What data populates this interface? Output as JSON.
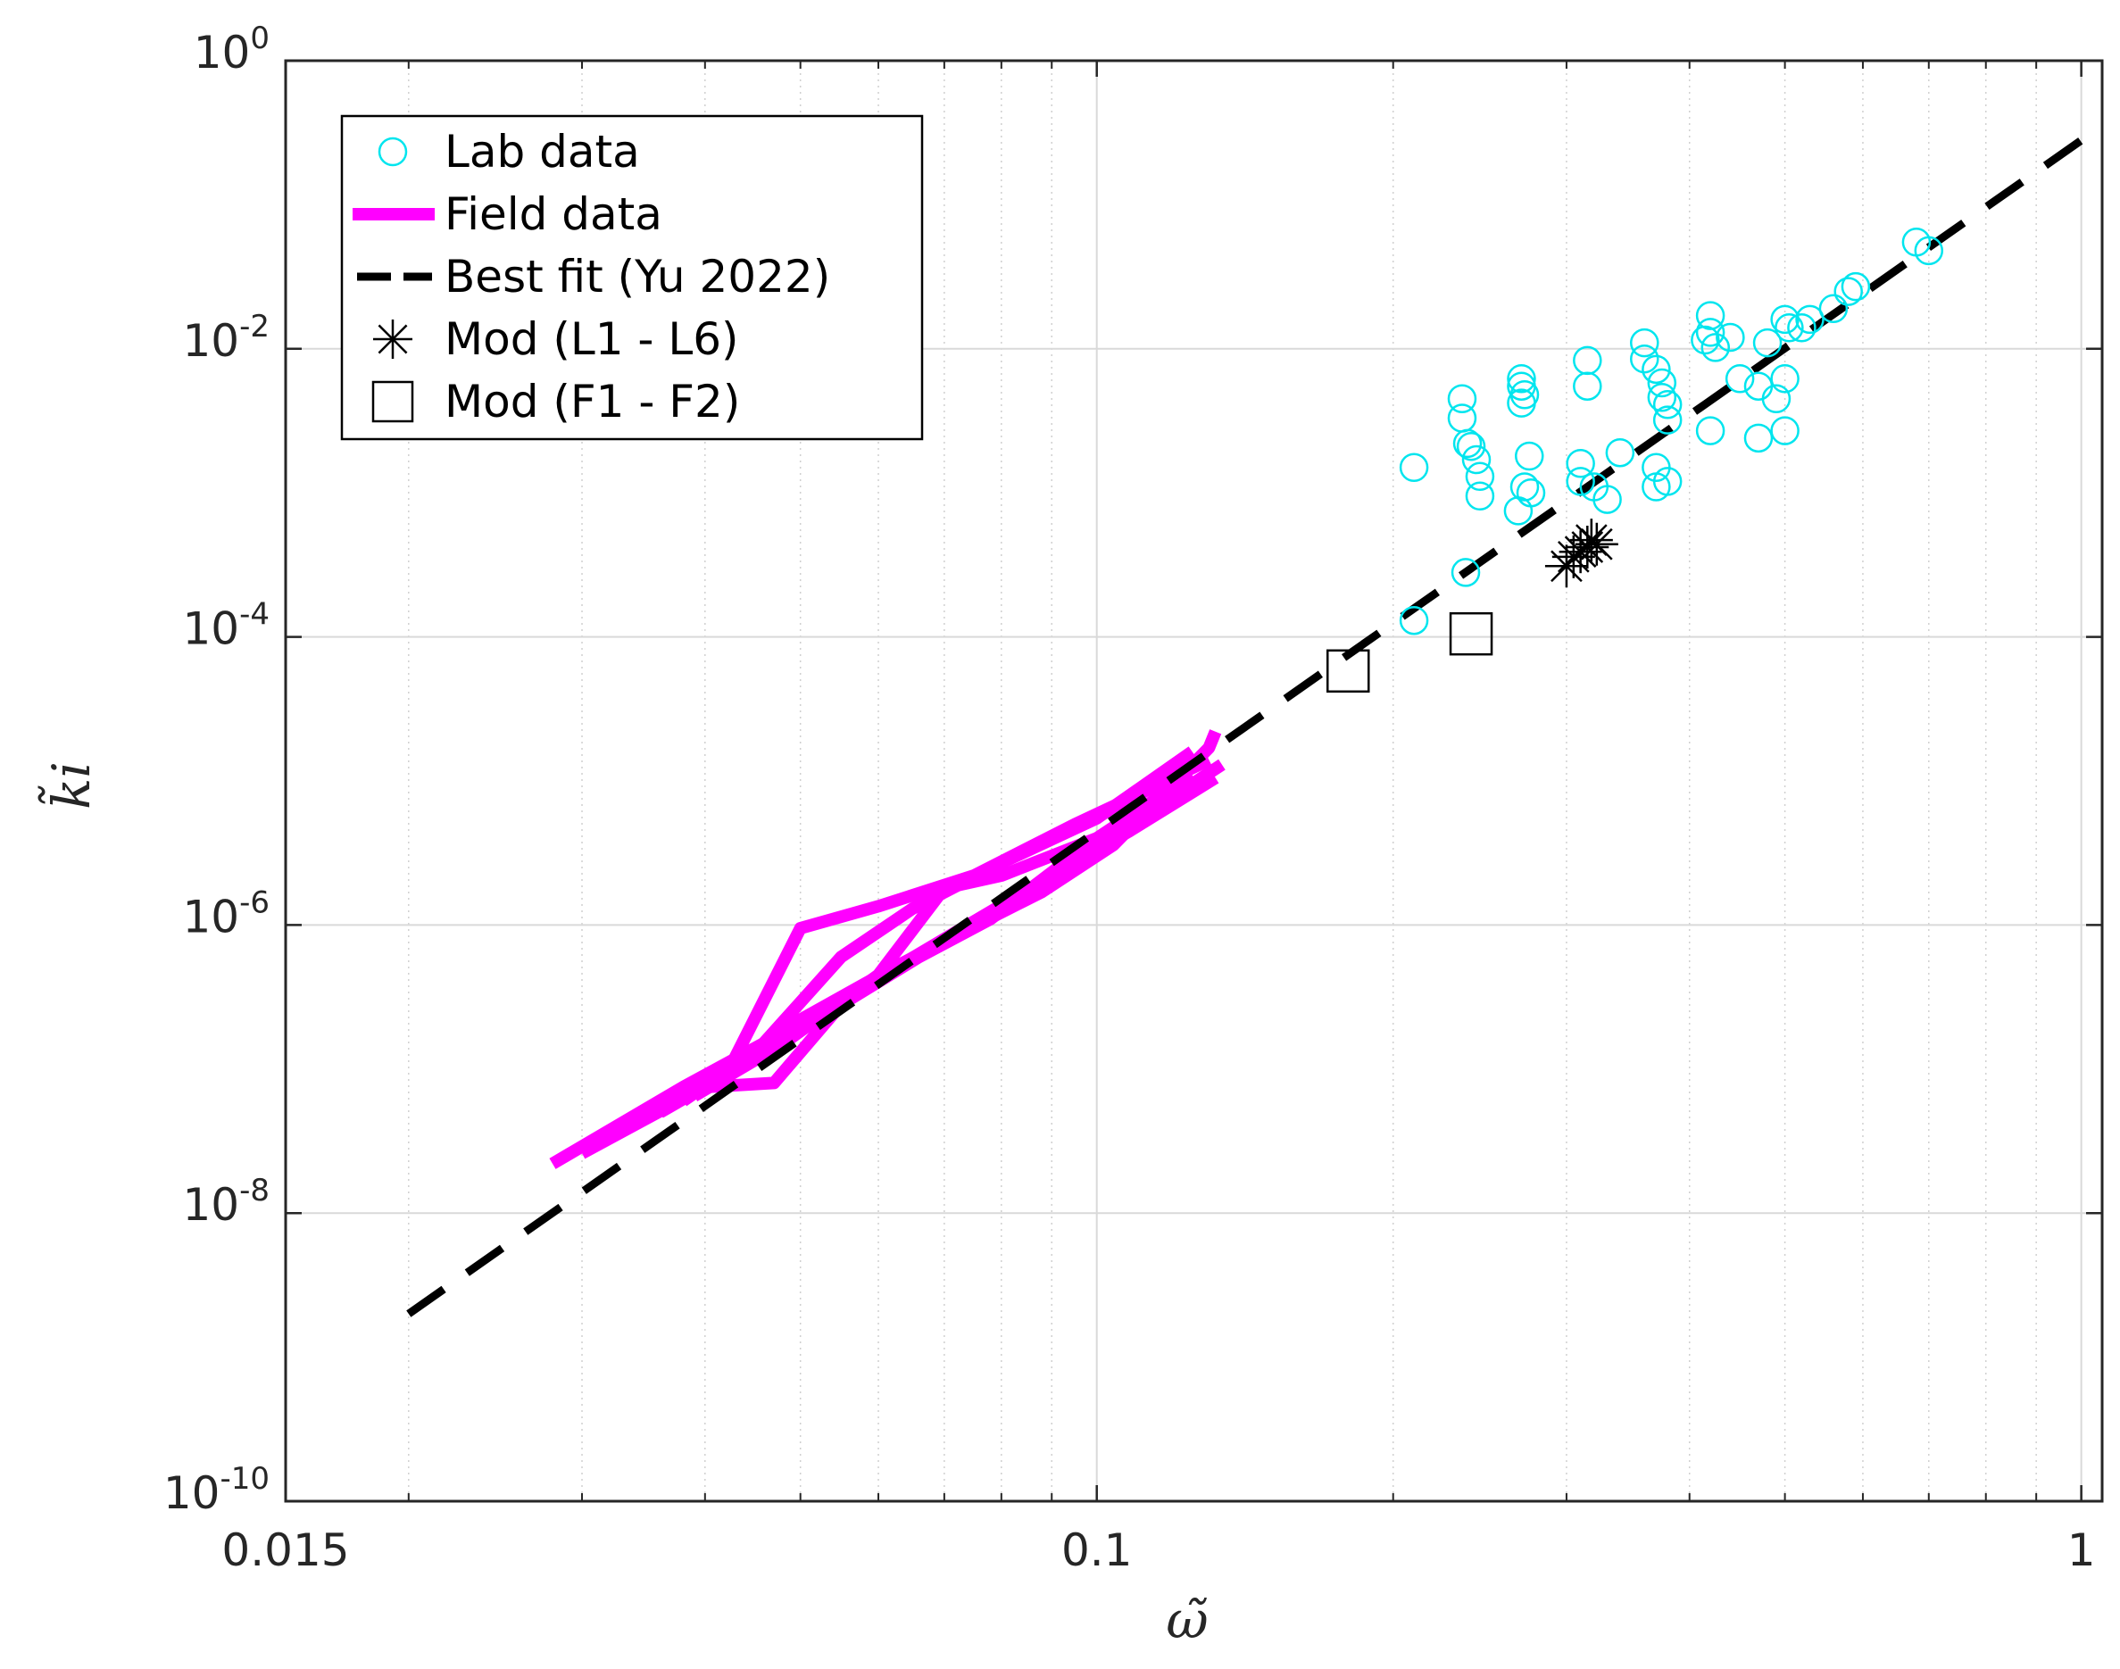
{
  "chart_data": {
    "type": "scatter",
    "xlabel": "ω̃",
    "ylabel": "k̃i",
    "xscale": "log",
    "yscale": "log",
    "xlim": [
      0.015,
      1.05
    ],
    "ylim": [
      1e-10,
      1
    ],
    "grid": true,
    "legend_position": "top-left",
    "x_ticks": [
      {
        "value": 0.015,
        "label": "0.015"
      },
      {
        "value": 0.1,
        "label": "0.1"
      },
      {
        "value": 1,
        "label": "1"
      }
    ],
    "y_ticks": [
      {
        "value": 1,
        "base": "10",
        "exp": "0"
      },
      {
        "value": 0.01,
        "base": "10",
        "exp": "-2"
      },
      {
        "value": 0.0001,
        "base": "10",
        "exp": "-4"
      },
      {
        "value": 1e-06,
        "base": "10",
        "exp": "-6"
      },
      {
        "value": 1e-08,
        "base": "10",
        "exp": "-8"
      },
      {
        "value": 1e-10,
        "base": "10",
        "exp": "-10"
      }
    ],
    "series": [
      {
        "name": "Lab data",
        "marker": "circle",
        "color": "#00e5ee",
        "points": [
          [
            0.21,
            0.0015
          ],
          [
            0.21,
            0.00013
          ],
          [
            0.235,
            0.0045
          ],
          [
            0.235,
            0.0033
          ],
          [
            0.238,
            0.0022
          ],
          [
            0.24,
            0.0021
          ],
          [
            0.243,
            0.0017
          ],
          [
            0.245,
            0.0013
          ],
          [
            0.245,
            0.00095
          ],
          [
            0.237,
            0.00028
          ],
          [
            0.27,
            0.0062
          ],
          [
            0.27,
            0.0055
          ],
          [
            0.272,
            0.0048
          ],
          [
            0.27,
            0.0042
          ],
          [
            0.275,
            0.0018
          ],
          [
            0.272,
            0.0011
          ],
          [
            0.276,
            0.001
          ],
          [
            0.268,
            0.00075
          ],
          [
            0.315,
            0.0083
          ],
          [
            0.315,
            0.0055
          ],
          [
            0.31,
            0.0016
          ],
          [
            0.31,
            0.0012
          ],
          [
            0.33,
            0.0009
          ],
          [
            0.32,
            0.0011
          ],
          [
            0.34,
            0.0019
          ],
          [
            0.36,
            0.011
          ],
          [
            0.36,
            0.0085
          ],
          [
            0.37,
            0.0072
          ],
          [
            0.375,
            0.0058
          ],
          [
            0.375,
            0.0046
          ],
          [
            0.38,
            0.0041
          ],
          [
            0.38,
            0.0032
          ],
          [
            0.37,
            0.0015
          ],
          [
            0.37,
            0.0011
          ],
          [
            0.38,
            0.0012
          ],
          [
            0.42,
            0.017
          ],
          [
            0.42,
            0.013
          ],
          [
            0.415,
            0.0115
          ],
          [
            0.425,
            0.0102
          ],
          [
            0.44,
            0.012
          ],
          [
            0.45,
            0.0062
          ],
          [
            0.42,
            0.0027
          ],
          [
            0.47,
            0.0055
          ],
          [
            0.48,
            0.011
          ],
          [
            0.49,
            0.0045
          ],
          [
            0.47,
            0.0024
          ],
          [
            0.5,
            0.016
          ],
          [
            0.505,
            0.014
          ],
          [
            0.5,
            0.0062
          ],
          [
            0.5,
            0.0027
          ],
          [
            0.52,
            0.014
          ],
          [
            0.53,
            0.016
          ],
          [
            0.56,
            0.019
          ],
          [
            0.58,
            0.025
          ],
          [
            0.59,
            0.027
          ],
          [
            0.68,
            0.055
          ],
          [
            0.7,
            0.048
          ]
        ]
      },
      {
        "name": "Field data",
        "marker": "line",
        "color": "#ff00ff",
        "lines": [
          [
            [
              0.028,
              2.2e-08
            ],
            [
              0.038,
              7.5e-08
            ],
            [
              0.052,
              2.4e-07
            ],
            [
              0.07,
              8e-07
            ],
            [
              0.09,
              2.2e-06
            ],
            [
              0.108,
              4.5e-06
            ],
            [
              0.132,
              1.05e-05
            ]
          ],
          [
            [
              0.03,
              2.6e-08
            ],
            [
              0.042,
              9e-08
            ],
            [
              0.05,
              9.5e-07
            ],
            [
              0.06,
              1.35e-06
            ],
            [
              0.075,
              2.2e-06
            ],
            [
              0.095,
              5e-06
            ],
            [
              0.11,
              8e-06
            ],
            [
              0.13,
              1.4e-05
            ]
          ],
          [
            [
              0.036,
              5e-08
            ],
            [
              0.044,
              1.1e-07
            ],
            [
              0.055,
              6e-07
            ],
            [
              0.065,
              1.3e-06
            ],
            [
              0.08,
              2.7e-06
            ],
            [
              0.1,
              5.5e-06
            ],
            [
              0.125,
              1.6e-05
            ]
          ],
          [
            [
              0.038,
              6e-08
            ],
            [
              0.05,
              2.2e-07
            ],
            [
              0.062,
              5e-07
            ],
            [
              0.072,
              8.5e-07
            ],
            [
              0.088,
              1.7e-06
            ],
            [
              0.104,
              3.6e-06
            ],
            [
              0.13,
              1.7e-05
            ],
            [
              0.132,
              2.2e-05
            ]
          ],
          [
            [
              0.04,
              7.5e-08
            ],
            [
              0.047,
              8e-08
            ],
            [
              0.055,
              2.8e-07
            ],
            [
              0.066,
              6e-07
            ],
            [
              0.078,
              1.1e-06
            ],
            [
              0.092,
              2.6e-06
            ],
            [
              0.112,
              5.8e-06
            ],
            [
              0.134,
              1.3e-05
            ]
          ],
          [
            [
              0.039,
              6.5e-08
            ],
            [
              0.048,
              1.5e-07
            ],
            [
              0.06,
              4.5e-07
            ],
            [
              0.07,
              1.8e-06
            ],
            [
              0.08,
              2.2e-06
            ],
            [
              0.1,
              4e-06
            ],
            [
              0.125,
              1.1e-05
            ]
          ]
        ]
      },
      {
        "name": "Best fit (Yu 2022)",
        "marker": "dashed",
        "color": "#000000",
        "x": [
          0.02,
          1
        ],
        "y": [
          2e-09,
          0.28
        ]
      },
      {
        "name": "Mod (L1 - L6)",
        "marker": "asterisk",
        "color": "#000000",
        "points": [
          [
            0.3,
            0.00031
          ],
          [
            0.305,
            0.00036
          ],
          [
            0.31,
            0.00039
          ],
          [
            0.315,
            0.00042
          ],
          [
            0.318,
            0.00047
          ],
          [
            0.322,
            0.00044
          ]
        ]
      },
      {
        "name": "Mod (F1 - F2)",
        "marker": "square",
        "color": "#000000",
        "points": [
          [
            0.18,
            5.8e-05
          ],
          [
            0.24,
            0.000105
          ]
        ]
      }
    ]
  }
}
